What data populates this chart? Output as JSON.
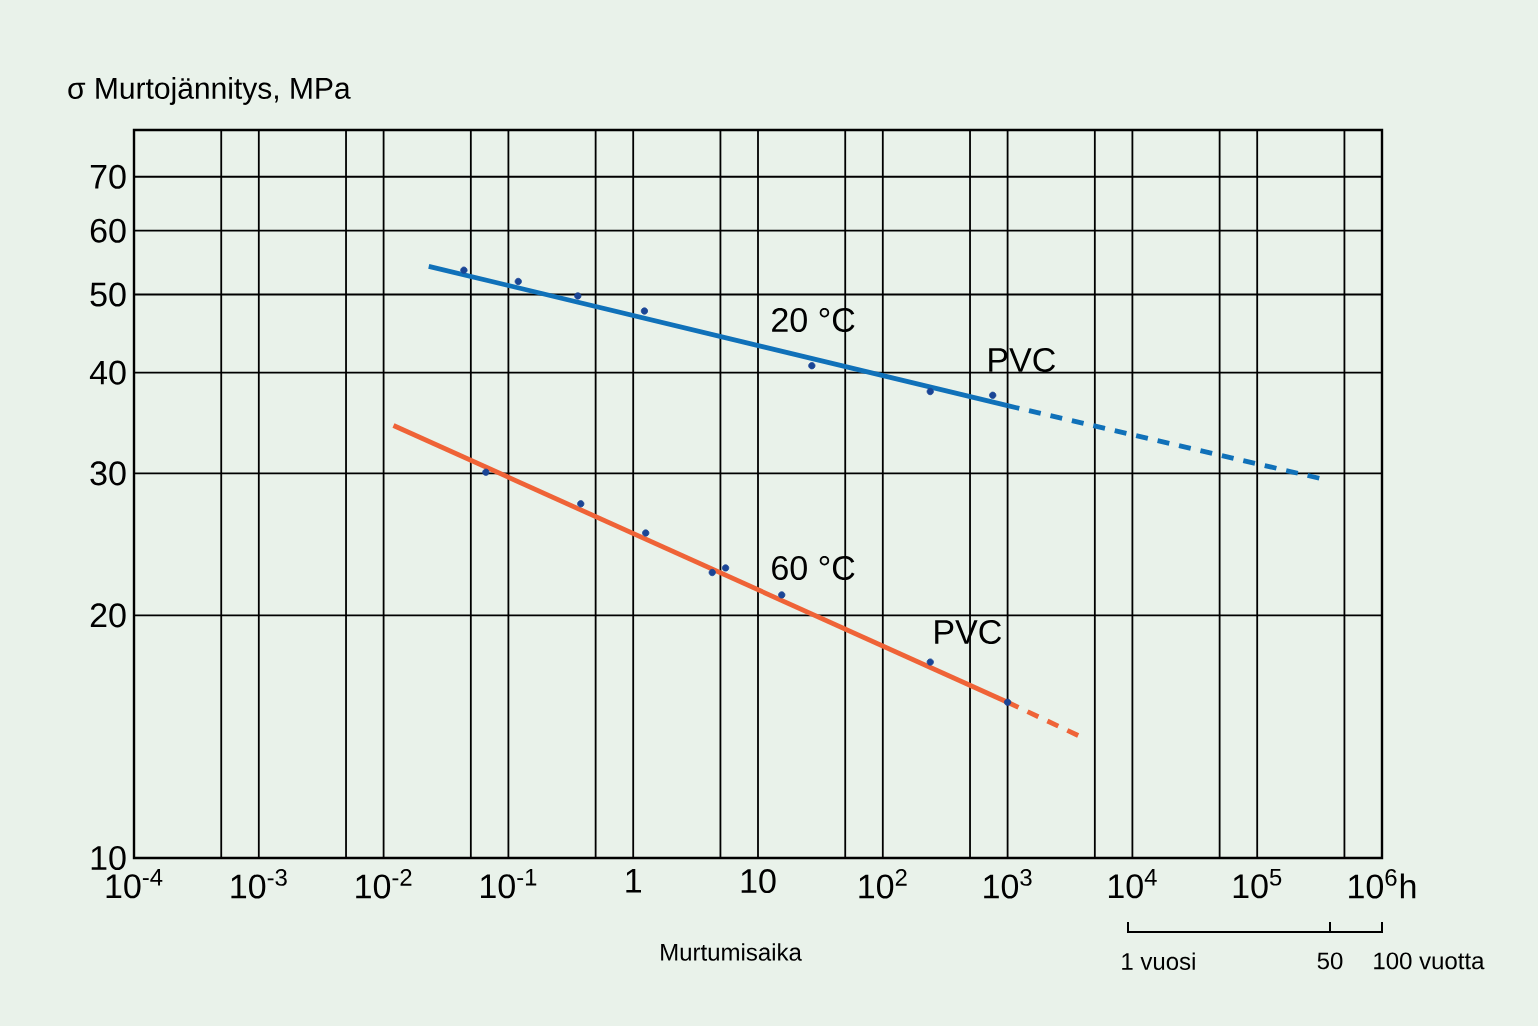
{
  "chart_data": {
    "type": "line",
    "ylabel": "σ Murtojännitys, MPa",
    "xlabel": "Murtumisaika",
    "log": "xy",
    "grid": true,
    "xlim": [
      0.0001,
      1000000
    ],
    "ylim": [
      10,
      80
    ],
    "xticks": [
      {
        "value": 0.0001,
        "label": "10$^{-4}$"
      },
      {
        "value": 0.0005,
        "label": null
      },
      {
        "value": 0.001,
        "label": "10$^{-3}$"
      },
      {
        "value": 0.005,
        "label": null
      },
      {
        "value": 0.01,
        "label": "10$^{-2}$"
      },
      {
        "value": 0.05,
        "label": null
      },
      {
        "value": 0.1,
        "label": "10$^{-1}$"
      },
      {
        "value": 0.5,
        "label": null
      },
      1,
      {
        "value": 5,
        "label": null
      },
      10,
      {
        "value": 50,
        "label": null
      },
      {
        "value": 100,
        "label": "10$^{2}$"
      },
      {
        "value": 500,
        "label": null
      },
      {
        "value": 1000,
        "label": "10$^{3}$"
      },
      {
        "value": 5000,
        "label": null
      },
      {
        "value": 10000,
        "label": "10$^{4}$"
      },
      {
        "value": 50000,
        "label": null
      },
      {
        "value": 100000,
        "label": "10$^{5}$"
      },
      {
        "value": 500000,
        "label": null
      },
      {
        "value": 1000000,
        "label": "10$^{6}$h"
      }
    ],
    "yticks": [
      10,
      20,
      30,
      40,
      50,
      60,
      70
    ],
    "series": [
      {
        "type": "scatter",
        "marker": "circle",
        "color": "#1a4596",
        "x": [
          0.044,
          0.12,
          0.36,
          1.23,
          27,
          240,
          760
        ],
        "values": [
          53.6,
          51.9,
          49.8,
          47.7,
          40.8,
          37.9,
          37.5
        ]
      },
      {
        "color": "#1071b9",
        "line_style": "solid",
        "x": [
          0.023,
          1000
        ],
        "values": [
          54.2,
          36.4
        ]
      },
      {
        "color": "#1071b9",
        "line_style": "dashed",
        "x": [
          1000,
          340000
        ],
        "values": [
          36.4,
          29.5
        ]
      },
      {
        "type": "scatter",
        "marker": "circle",
        "color": "#1a4596",
        "x": [
          0.066,
          0.38,
          1.26,
          4.3,
          5.5,
          15.5,
          240,
          1000
        ],
        "values": [
          30.1,
          27.5,
          25.3,
          22.6,
          22.9,
          21.2,
          17.5,
          15.6
        ]
      },
      {
        "color": "#ef6337",
        "line_style": "solid",
        "x": [
          0.012,
          1000
        ],
        "values": [
          34.4,
          15.6
        ]
      },
      {
        "color": "#ef6337",
        "line_style": "dashed",
        "x": [
          1000,
          4000
        ],
        "values": [
          15.6,
          14.1
        ]
      }
    ],
    "annotations": [
      "20 °C",
      "PVC",
      "60 °C",
      "PVC",
      "1 vuosi",
      "50",
      "100 vuotta"
    ]
  }
}
